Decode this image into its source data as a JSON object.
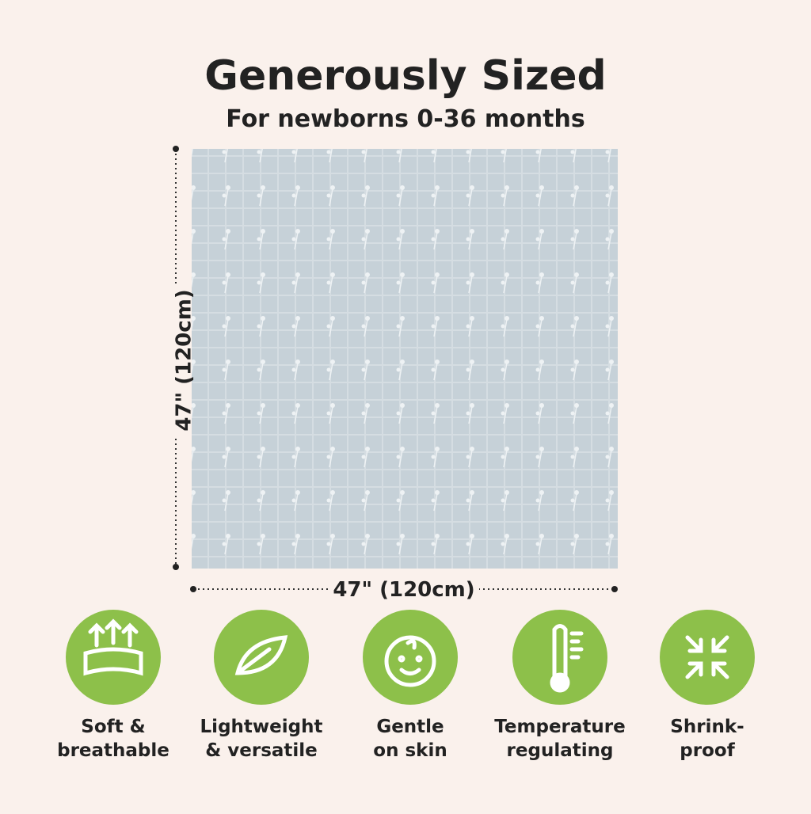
{
  "header": {
    "title": "Generously Sized",
    "subtitle": "For newborns 0-36 months"
  },
  "dimensions": {
    "height": "47\" (120cm)",
    "width": "47\" (120cm)"
  },
  "features": [
    {
      "lines": [
        "Soft &",
        "breathable"
      ]
    },
    {
      "lines": [
        "Lightweight",
        "& versatile"
      ]
    },
    {
      "lines": [
        "Gentle",
        "on skin"
      ]
    },
    {
      "lines": [
        "Temperature",
        "regulating"
      ]
    },
    {
      "lines": [
        "Shrink-",
        "proof"
      ]
    }
  ]
}
